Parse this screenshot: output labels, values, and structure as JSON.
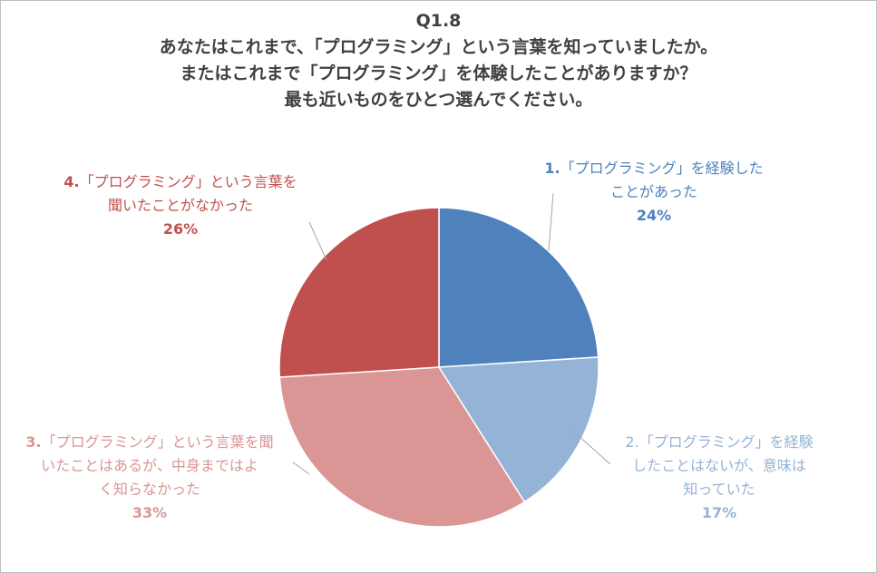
{
  "chart_data": {
    "type": "pie",
    "title": [
      "Q1.8",
      "あなたはこれまで、「プログラミング」という言葉を知っていましたか。",
      "またはこれまで「プログラミング」を体験したことがありますか？",
      "最も近いものをひとつ選んでください。"
    ],
    "slices": [
      {
        "number": "1.",
        "label": [
          "「プログラミング」を経験した",
          "ことがあった"
        ],
        "value": 24,
        "value_label": "24%",
        "color": "#4f81bd",
        "label_color": "#4f81bd"
      },
      {
        "number": "2.",
        "label": [
          "「プログラミング」を経験",
          "したことはないが、意味は",
          "知っていた"
        ],
        "value": 17,
        "value_label": "17%",
        "color": "#95b3d7",
        "label_color": "#95b3d7"
      },
      {
        "number": "3.",
        "label": [
          "「プログラミング」という言葉を聞",
          "いたことはあるが、中身まではよ",
          "く知らなかった"
        ],
        "value": 33,
        "value_label": "33%",
        "color": "#d99694",
        "label_color": "#d99694"
      },
      {
        "number": "4.",
        "label": [
          "「プログラミング」という言葉を",
          "聞いたことがなかった"
        ],
        "value": 26,
        "value_label": "26%",
        "color": "#c0504d",
        "label_color": "#c0504d"
      }
    ],
    "start_angle_deg": 0,
    "direction": "clockwise"
  }
}
